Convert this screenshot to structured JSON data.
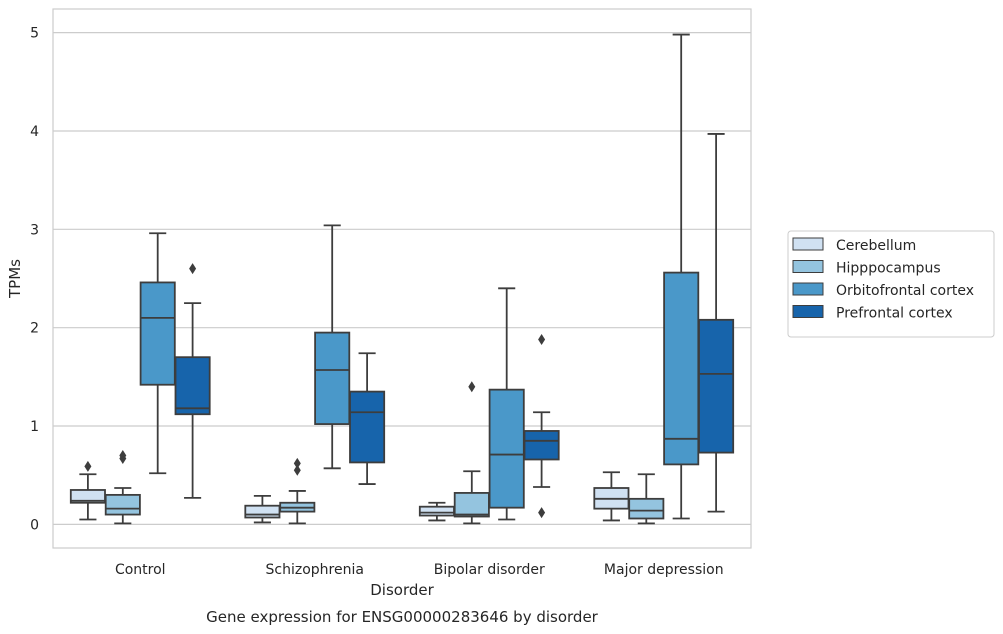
{
  "chart_data": {
    "type": "boxplot",
    "caption": "Gene expression for ENSG00000283646 by disorder",
    "xlabel": "Disorder",
    "ylabel": "TPMs",
    "ylim": [
      -0.24,
      5.24
    ],
    "yticks": [
      0,
      1,
      2,
      3,
      4,
      5
    ],
    "grid": "horizontal",
    "legend_position": "right",
    "categories": [
      "Control",
      "Schizophrenia",
      "Bipolar disorder",
      "Major depression"
    ],
    "series": [
      {
        "name": "Cerebellum",
        "color": "#d0e1f2",
        "boxes": [
          {
            "whislo": 0.05,
            "q1": 0.22,
            "med": 0.24,
            "q3": 0.35,
            "whishi": 0.51,
            "fliers": [
              0.59
            ]
          },
          {
            "whislo": 0.02,
            "q1": 0.07,
            "med": 0.1,
            "q3": 0.19,
            "whishi": 0.29,
            "fliers": []
          },
          {
            "whislo": 0.04,
            "q1": 0.09,
            "med": 0.12,
            "q3": 0.18,
            "whishi": 0.22,
            "fliers": []
          },
          {
            "whislo": 0.04,
            "q1": 0.16,
            "med": 0.26,
            "q3": 0.37,
            "whishi": 0.53,
            "fliers": []
          }
        ]
      },
      {
        "name": "Hipppocampus",
        "color": "#94c4df",
        "boxes": [
          {
            "whislo": 0.01,
            "q1": 0.1,
            "med": 0.16,
            "q3": 0.3,
            "whishi": 0.37,
            "fliers": [
              0.67,
              0.7
            ]
          },
          {
            "whislo": 0.01,
            "q1": 0.13,
            "med": 0.17,
            "q3": 0.22,
            "whishi": 0.34,
            "fliers": [
              0.55,
              0.62
            ]
          },
          {
            "whislo": 0.01,
            "q1": 0.08,
            "med": 0.1,
            "q3": 0.32,
            "whishi": 0.54,
            "fliers": [
              1.4
            ]
          },
          {
            "whislo": 0.01,
            "q1": 0.06,
            "med": 0.14,
            "q3": 0.26,
            "whishi": 0.51,
            "fliers": []
          }
        ]
      },
      {
        "name": "Orbitofrontal cortex",
        "color": "#4a98c9",
        "boxes": [
          {
            "whislo": 0.52,
            "q1": 1.42,
            "med": 2.1,
            "q3": 2.46,
            "whishi": 2.96,
            "fliers": []
          },
          {
            "whislo": 0.57,
            "q1": 1.02,
            "med": 1.57,
            "q3": 1.95,
            "whishi": 3.04,
            "fliers": []
          },
          {
            "whislo": 0.05,
            "q1": 0.17,
            "med": 0.71,
            "q3": 1.37,
            "whishi": 2.4,
            "fliers": []
          },
          {
            "whislo": 0.06,
            "q1": 0.61,
            "med": 0.87,
            "q3": 2.56,
            "whishi": 4.98,
            "fliers": []
          }
        ]
      },
      {
        "name": "Prefrontal cortex",
        "color": "#1764ab",
        "boxes": [
          {
            "whislo": 0.27,
            "q1": 1.12,
            "med": 1.18,
            "q3": 1.7,
            "whishi": 2.25,
            "fliers": [
              2.6
            ]
          },
          {
            "whislo": 0.41,
            "q1": 0.63,
            "med": 1.14,
            "q3": 1.35,
            "whishi": 1.74,
            "fliers": []
          },
          {
            "whislo": 0.38,
            "q1": 0.66,
            "med": 0.85,
            "q3": 0.95,
            "whishi": 1.14,
            "fliers": [
              0.12,
              1.88
            ]
          },
          {
            "whislo": 0.13,
            "q1": 0.73,
            "med": 1.53,
            "q3": 2.08,
            "whishi": 3.97,
            "fliers": []
          }
        ]
      }
    ]
  }
}
